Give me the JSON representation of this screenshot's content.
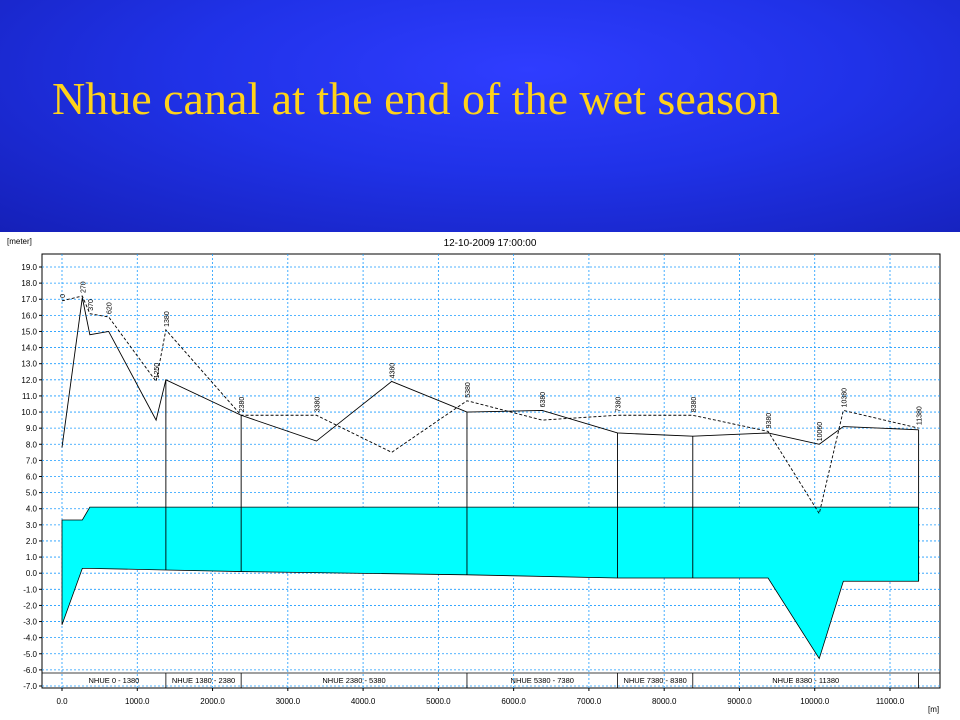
{
  "slide": {
    "title": "Nhue canal at the end of the wet season"
  },
  "colors": {
    "header_bg": "#2032e8",
    "title": "#ffd21a",
    "water_fill": "#00ffff",
    "grid": "#1a9bff"
  },
  "chart_data": {
    "type": "line",
    "title": "12-10-2009 17:00:00",
    "ylabel": "[meter]",
    "xlabel": "[m]",
    "xlim": [
      -200,
      11400
    ],
    "ylim": [
      -7.0,
      19.5
    ],
    "x_ticks": [
      0,
      1000,
      2000,
      3000,
      4000,
      5000,
      6000,
      7000,
      8000,
      9000,
      10000,
      11000
    ],
    "x_tick_labels": [
      "0.0",
      "1000.0",
      "2000.0",
      "3000.0",
      "4000.0",
      "5000.0",
      "6000.0",
      "7000.0",
      "8000.0",
      "9000.0",
      "10000.0",
      "11000.0"
    ],
    "y_ticks": [
      -7,
      -6,
      -5,
      -4,
      -3,
      -2,
      -1,
      0,
      1,
      2,
      3,
      4,
      5,
      6,
      7,
      8,
      9,
      10,
      11,
      12,
      13,
      14,
      15,
      16,
      17,
      18,
      19
    ],
    "y_tick_labels": [
      "-7.0",
      "-6.0",
      "-5.0",
      "-4.0",
      "-3.0",
      "-2.0",
      "-1.0",
      "0.0",
      "1.0",
      "2.0",
      "3.0",
      "4.0",
      "5.0",
      "6.0",
      "7.0",
      "8.0",
      "9.0",
      "10.0",
      "11.0",
      "12.0",
      "13.0",
      "14.0",
      "15.0",
      "16.0",
      "17.0",
      "18.0",
      "19.0"
    ],
    "grid": true,
    "series": [
      {
        "role": "left bank",
        "style": "solid",
        "x": [
          0,
          270,
          370,
          620,
          1250,
          1380,
          2380,
          3380,
          4380,
          5380,
          6380,
          7380,
          8380,
          9380,
          10060,
          10380,
          11380
        ],
        "y": [
          7.8,
          17.1,
          14.8,
          15.0,
          9.5,
          12.0,
          9.8,
          8.2,
          11.9,
          10.0,
          10.1,
          8.7,
          8.5,
          8.7,
          8.0,
          9.1,
          8.9
        ]
      },
      {
        "role": "right bank",
        "style": "dashed",
        "x": [
          0,
          270,
          370,
          620,
          1250,
          1380,
          2380,
          3380,
          4380,
          5380,
          6380,
          7380,
          8380,
          9380,
          10060,
          10380,
          11380
        ],
        "y": [
          16.9,
          17.2,
          16.1,
          15.9,
          11.9,
          15.1,
          9.8,
          9.8,
          7.5,
          10.7,
          9.5,
          9.8,
          9.8,
          8.8,
          3.7,
          10.1,
          9.0
        ]
      },
      {
        "role": "bed",
        "style": "solid",
        "x": [
          0,
          270,
          370,
          1380,
          2380,
          5380,
          7380,
          8380,
          9380,
          10060,
          10380,
          11380
        ],
        "y": [
          -3.2,
          0.3,
          0.3,
          0.2,
          0.1,
          -0.1,
          -0.3,
          -0.3,
          -0.3,
          -5.3,
          -0.5,
          -0.5
        ]
      },
      {
        "role": "water level",
        "style": "filled",
        "x": [
          0,
          270,
          370,
          1380,
          2380,
          5380,
          7380,
          8380,
          9380,
          10060,
          10380,
          11380
        ],
        "y": [
          3.3,
          3.3,
          4.1,
          4.1,
          4.1,
          4.1,
          4.1,
          4.1,
          4.1,
          4.1,
          4.1,
          4.1
        ]
      }
    ],
    "chainage_labels": [
      {
        "x": 0,
        "text": "0"
      },
      {
        "x": 270,
        "text": "270"
      },
      {
        "x": 370,
        "text": "370"
      },
      {
        "x": 620,
        "text": "620"
      },
      {
        "x": 1250,
        "text": "1250"
      },
      {
        "x": 1380,
        "text": "1380"
      },
      {
        "x": 2380,
        "text": "2380"
      },
      {
        "x": 3380,
        "text": "3380"
      },
      {
        "x": 4380,
        "text": "4380"
      },
      {
        "x": 5380,
        "text": "5380"
      },
      {
        "x": 6380,
        "text": "6380"
      },
      {
        "x": 7380,
        "text": "7380"
      },
      {
        "x": 8380,
        "text": "8380"
      },
      {
        "x": 9380,
        "text": "9380"
      },
      {
        "x": 10060,
        "text": "10060"
      },
      {
        "x": 10380,
        "text": "10380"
      },
      {
        "x": 11380,
        "text": "11380"
      }
    ],
    "structure_lines_x": [
      1380,
      2380,
      5380,
      7380,
      8380,
      11380
    ],
    "reaches": [
      {
        "from": 0,
        "to": 1380,
        "label": "NHUE  0 - 1380"
      },
      {
        "from": 1380,
        "to": 2380,
        "label": "NHUE  1380 - 2380"
      },
      {
        "from": 2380,
        "to": 5380,
        "label": "NHUE  2380 - 5380"
      },
      {
        "from": 5380,
        "to": 7380,
        "label": "NHUE  5380 - 7380"
      },
      {
        "from": 7380,
        "to": 8380,
        "label": "NHUE  7380 - 8380"
      },
      {
        "from": 8380,
        "to": 11380,
        "label": "NHUE  8380 - 11380"
      }
    ]
  }
}
